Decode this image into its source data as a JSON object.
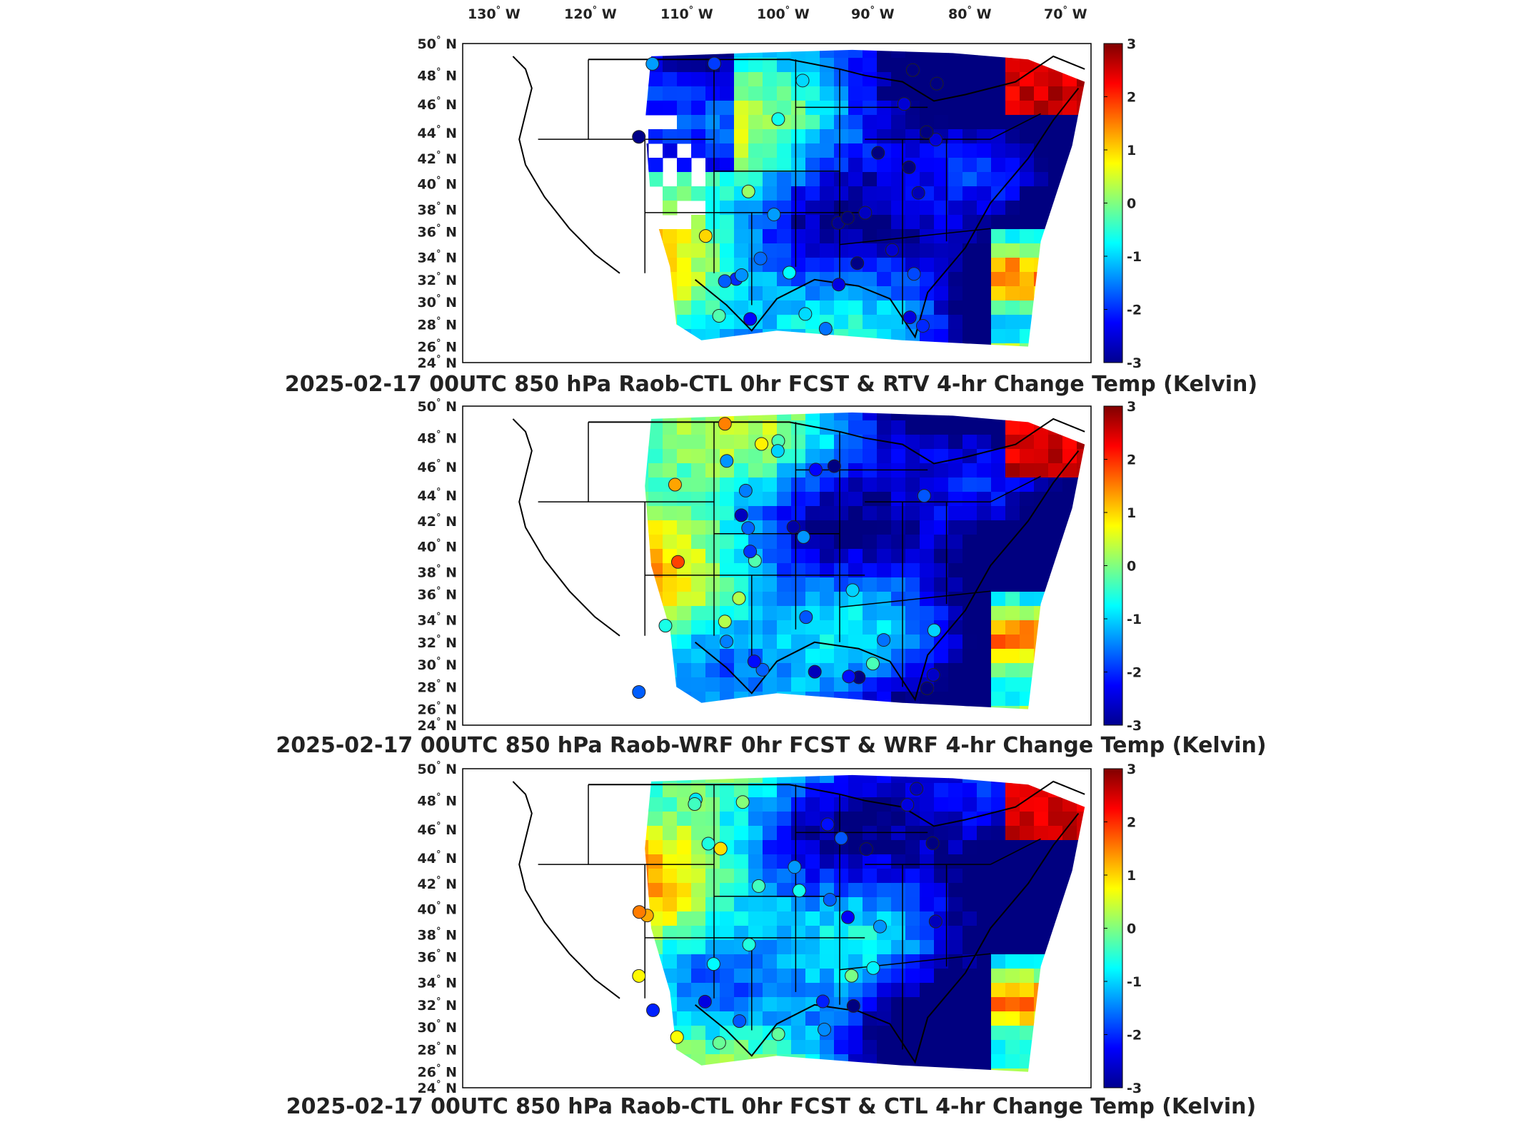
{
  "figure": {
    "lon_labels": [
      "130",
      "120",
      "110",
      "100",
      "90",
      "80",
      "70"
    ],
    "lon_suffix": "W",
    "lat_labels": [
      "50",
      "48",
      "46",
      "44",
      "42",
      "40",
      "38",
      "36",
      "34",
      "32",
      "30",
      "28",
      "26",
      "24"
    ],
    "lat_suffix": "N",
    "degree_symbol": "°",
    "colorbar": {
      "ticks": [
        "3",
        "2",
        "1",
        "0",
        "-1",
        "-2",
        "-3"
      ],
      "min": -3,
      "max": 3,
      "colormap": "jet"
    },
    "panels": [
      {
        "title": "2025-02-17 00UTC 850 hPa Raob-CTL 0hr FCST & RTV 4-hr Change Temp (Kelvin)"
      },
      {
        "title": "2025-02-17 00UTC 850 hPa Raob-WRF 0hr FCST & WRF 4-hr Change Temp (Kelvin)"
      },
      {
        "title": "2025-02-17 00UTC 850 hPa Raob-CTL 0hr FCST & CTL 4-hr Change Temp (Kelvin)"
      }
    ]
  }
}
